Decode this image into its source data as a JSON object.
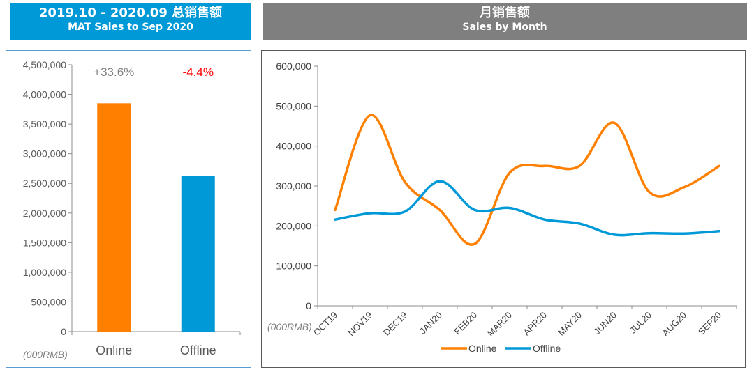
{
  "header_left": {
    "line1": "2019.10 - 2020.09 总销售额",
    "line2": "MAT Sales to Sep 2020"
  },
  "header_right": {
    "line1": "月销售额",
    "line2": "Sales by Month"
  },
  "chart_data": [
    {
      "type": "bar",
      "categories": [
        "Online",
        "Offline"
      ],
      "values": [
        3850000,
        2630000
      ],
      "colors": [
        "#ff8000",
        "#0099d8"
      ],
      "annotations": [
        "+33.6%",
        "-4.4%"
      ],
      "annotation_colors": [
        "#7f7f7f",
        "#ff0000"
      ],
      "unit_label": "(000RMB)",
      "ylim": [
        0,
        4500000
      ],
      "yticks": [
        0,
        500000,
        1000000,
        1500000,
        2000000,
        2500000,
        3000000,
        3500000,
        4000000,
        4500000
      ],
      "ytick_labels": [
        "0",
        "500,000",
        "1,000,000",
        "1,500,000",
        "2,000,000",
        "2,500,000",
        "3,000,000",
        "3,500,000",
        "4,000,000",
        "4,500,000"
      ],
      "grid": false
    },
    {
      "type": "line",
      "categories": [
        "OCT19",
        "NOV19",
        "DEC19",
        "JAN20",
        "FEB20",
        "MAR20",
        "APR20",
        "MAY20",
        "JUN20",
        "JUL20",
        "AUG20",
        "SEP20"
      ],
      "series": [
        {
          "name": "Online",
          "color": "#ff8000",
          "values": [
            240000,
            477000,
            310000,
            240000,
            155000,
            333000,
            350000,
            350000,
            458000,
            285000,
            297000,
            350000
          ]
        },
        {
          "name": "Offline",
          "color": "#0099d8",
          "values": [
            216000,
            232000,
            236000,
            312000,
            240000,
            245000,
            216000,
            206000,
            178000,
            182000,
            181000,
            187000
          ]
        }
      ],
      "unit_label": "(000RMB)",
      "ylim": [
        0,
        600000
      ],
      "yticks": [
        0,
        100000,
        200000,
        300000,
        400000,
        500000,
        600000
      ],
      "ytick_labels": [
        "0",
        "100,000",
        "200,000",
        "300,000",
        "400,000",
        "500,000",
        "600,000"
      ],
      "legend": "bottom",
      "grid": false
    }
  ]
}
